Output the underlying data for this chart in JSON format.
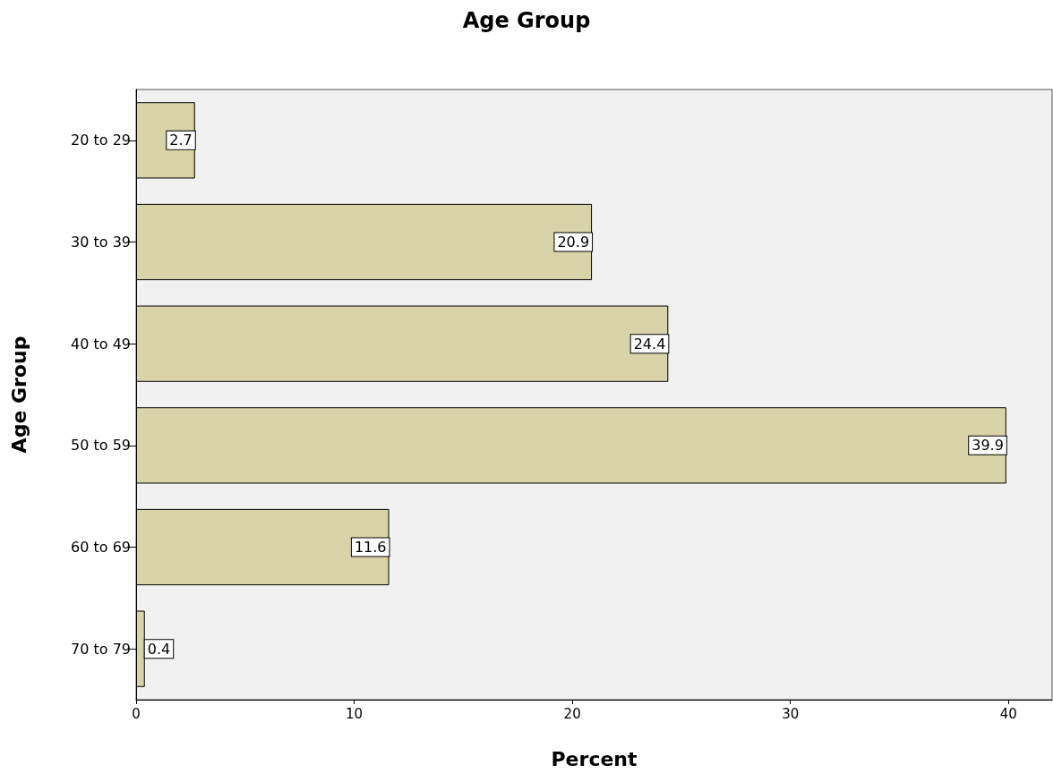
{
  "chart_data": {
    "type": "bar",
    "orientation": "horizontal",
    "title": "Age Group",
    "xlabel": "Percent",
    "ylabel": "Age Group",
    "categories": [
      "20 to 29",
      "30 to 39",
      "40 to 49",
      "50 to 59",
      "60 to 69",
      "70 to 79"
    ],
    "values": [
      2.7,
      20.9,
      24.4,
      39.9,
      11.6,
      0.4
    ],
    "color": "#d9d3aa",
    "xlim": [
      0,
      42
    ],
    "xticks": [
      0,
      10,
      20,
      30,
      40
    ],
    "data_labels": true
  }
}
